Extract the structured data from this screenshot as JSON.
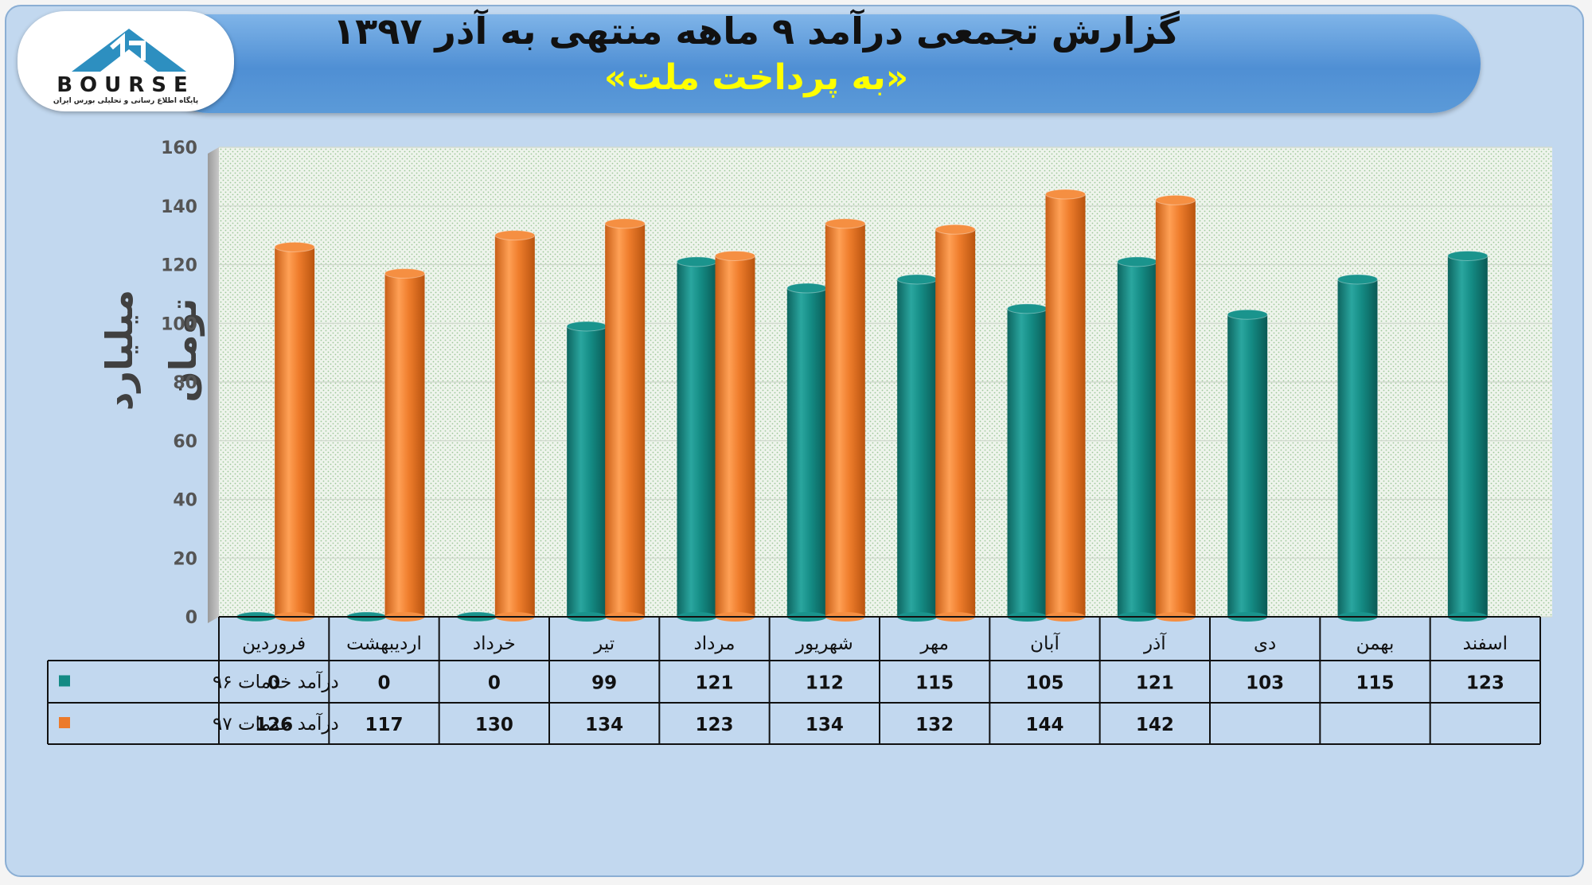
{
  "title": {
    "line1": "گزارش تجمعی درآمد ۹ ماهه منتهی به آذر ۱۳۹۷",
    "line2": "«به پرداخت ملت»"
  },
  "logo": {
    "word": "BOURSE",
    "subtitle": "پایگاه اطلاع رسانی و تحلیلی بورس ایران"
  },
  "colors": {
    "series_96": "#138a84",
    "series_97": "#ec7a2a",
    "plot_bg": "#eef4ec",
    "grid": "#d4dcd0"
  },
  "chart_data": {
    "type": "bar",
    "title": "گزارش تجمعی درآمد ۹ ماهه منتهی به آذر ۱۳۹۷",
    "subtitle": "«به پرداخت ملت»",
    "xlabel": "",
    "ylabel": "میلیارد تومان",
    "ylim": [
      0,
      160
    ],
    "yticks": [
      0,
      20,
      40,
      60,
      80,
      100,
      120,
      140,
      160
    ],
    "grid": true,
    "legend": "table-left",
    "categories": [
      "فروردین",
      "اردیبهشت",
      "خرداد",
      "تیر",
      "مرداد",
      "شهریور",
      "مهر",
      "آبان",
      "آذر",
      "دی",
      "بهمن",
      "اسفند"
    ],
    "series": [
      {
        "name": "درآمد خدمات ۹۶",
        "color": "#138a84",
        "values": [
          0,
          0,
          0,
          99,
          121,
          112,
          115,
          105,
          121,
          103,
          115,
          123
        ]
      },
      {
        "name": "درآمد خدمات ۹۷",
        "color": "#ec7a2a",
        "values": [
          126,
          117,
          130,
          134,
          123,
          134,
          132,
          144,
          142,
          null,
          null,
          null
        ]
      }
    ]
  }
}
